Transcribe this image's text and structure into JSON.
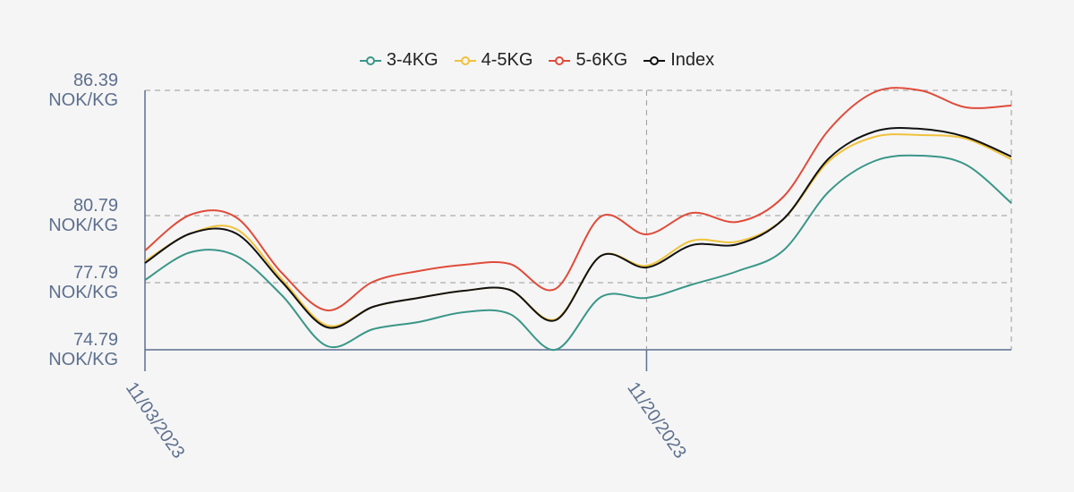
{
  "chart_data": {
    "type": "line",
    "categories": [
      "11/03/2023",
      null,
      null,
      null,
      null,
      null,
      null,
      null,
      null,
      null,
      null,
      "11/20/2023",
      null,
      null,
      null,
      null,
      null,
      null,
      null,
      null
    ],
    "series": [
      {
        "name": "3-4KG",
        "color": "#3a9688",
        "values": [
          77.91,
          79.15,
          78.99,
          77.23,
          74.95,
          75.71,
          76.03,
          76.47,
          76.39,
          74.79,
          77.15,
          77.11,
          77.71,
          78.31,
          79.23,
          81.87,
          83.23,
          83.47,
          83.07,
          81.35
        ]
      },
      {
        "name": "4-5KG",
        "color": "#f0c23c",
        "values": [
          78.75,
          79.99,
          80.19,
          77.95,
          75.87,
          76.71,
          77.11,
          77.43,
          77.47,
          76.15,
          78.99,
          78.55,
          79.67,
          79.63,
          80.63,
          83.23,
          84.31,
          84.39,
          84.23,
          83.31
        ]
      },
      {
        "name": "5-6KG",
        "color": "#e04b3a",
        "values": [
          79.23,
          80.83,
          80.71,
          78.23,
          76.55,
          77.83,
          78.31,
          78.59,
          78.63,
          77.51,
          80.75,
          79.95,
          80.91,
          80.51,
          81.63,
          84.63,
          86.31,
          86.39,
          85.63,
          85.71
        ]
      },
      {
        "name": "Index",
        "color": "#111111",
        "values": [
          78.67,
          79.99,
          79.99,
          77.83,
          75.79,
          76.71,
          77.11,
          77.43,
          77.47,
          76.11,
          78.99,
          78.47,
          79.47,
          79.51,
          80.63,
          83.35,
          84.55,
          84.67,
          84.31,
          83.43
        ]
      }
    ],
    "ylim": [
      74.79,
      86.39
    ],
    "yticks": [
      {
        "value": 74.79,
        "label": "74.79 NOK/KG"
      },
      {
        "value": 77.79,
        "label": "77.79 NOK/KG"
      },
      {
        "value": 80.79,
        "label": "80.79 NOK/KG"
      },
      {
        "value": 86.39,
        "label": "86.39 NOK/KG"
      }
    ],
    "grid": true,
    "legend": "top"
  }
}
